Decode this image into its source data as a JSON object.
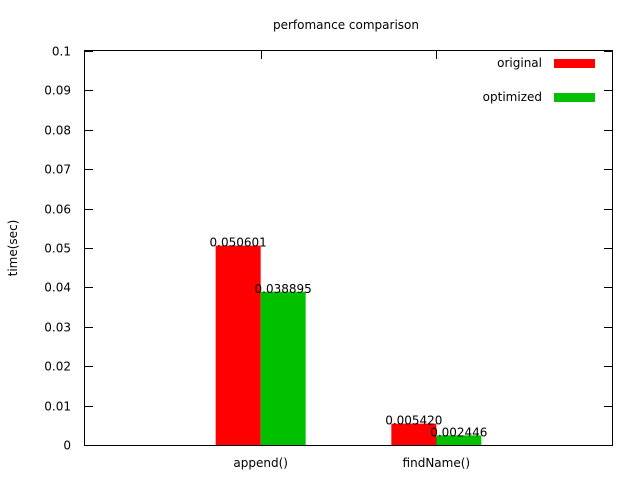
{
  "chart_data": {
    "type": "bar",
    "title": "perfomance comparison",
    "xlabel": "",
    "ylabel": "time(sec)",
    "categories": [
      "append()",
      "findName()"
    ],
    "series": [
      {
        "name": "original",
        "values": [
          0.050601,
          0.00542
        ],
        "labels": [
          "0.050601",
          "0.005420"
        ],
        "color": "#ff0000"
      },
      {
        "name": "optimized",
        "values": [
          0.038895,
          0.002446
        ],
        "labels": [
          "0.038895",
          "0.002446"
        ],
        "color": "#00c000"
      }
    ],
    "ylim": [
      0,
      0.1
    ],
    "yticks": [
      "0",
      "0.01",
      "0.02",
      "0.03",
      "0.04",
      "0.05",
      "0.06",
      "0.07",
      "0.08",
      "0.09",
      "0.1"
    ],
    "grid": false,
    "legend_position": "top-right"
  }
}
